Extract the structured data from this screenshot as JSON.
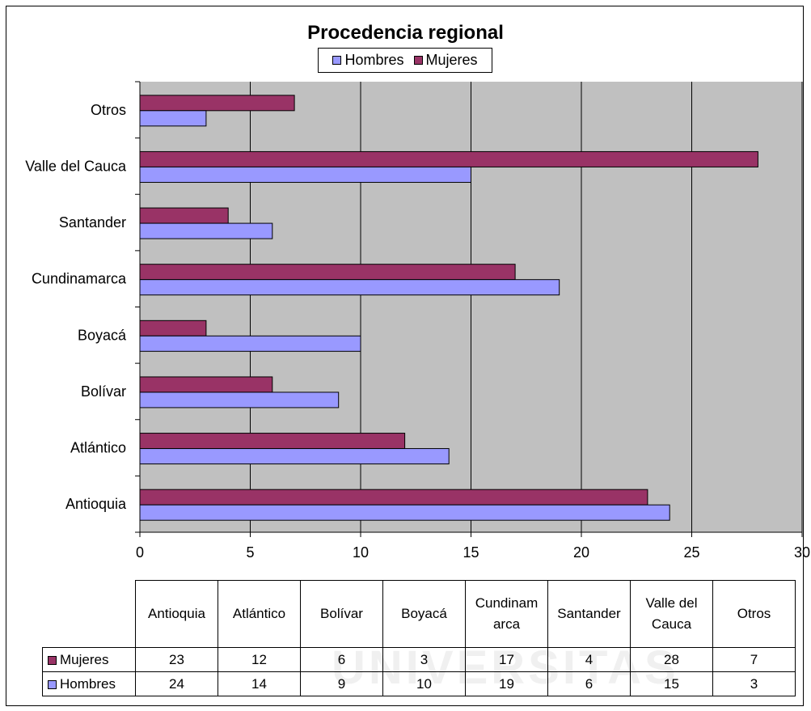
{
  "chart_data": {
    "type": "bar",
    "orientation": "horizontal",
    "title": "Procedencia regional",
    "categories": [
      "Antioquia",
      "Atlántico",
      "Bolívar",
      "Boyacá",
      "Cundinamarca",
      "Santander",
      "Valle del Cauca",
      "Otros"
    ],
    "series": [
      {
        "name": "Hombres",
        "color": "#9999ff",
        "values": [
          24,
          14,
          9,
          10,
          19,
          6,
          15,
          3
        ]
      },
      {
        "name": "Mujeres",
        "color": "#993366",
        "values": [
          23,
          12,
          6,
          3,
          17,
          4,
          28,
          7
        ]
      }
    ],
    "xlim": [
      0,
      30
    ],
    "xticks": [
      "0",
      "5",
      "10",
      "15",
      "20",
      "25",
      "30"
    ],
    "grid": true,
    "plot_background": "#c0c0c0",
    "legend_position": "top-center"
  },
  "table": {
    "headers": [
      "Antioquia",
      "Atlántico",
      "Bolívar",
      "Boyacá",
      "Cundinam arca",
      "Santander",
      "Valle del Cauca",
      "Otros"
    ],
    "rows": [
      {
        "label": "Mujeres",
        "color": "#993366",
        "values": [
          "23",
          "12",
          "6",
          "3",
          "17",
          "4",
          "28",
          "7"
        ]
      },
      {
        "label": "Hombres",
        "color": "#9999ff",
        "values": [
          "24",
          "14",
          "9",
          "10",
          "19",
          "6",
          "15",
          "3"
        ]
      }
    ]
  },
  "watermark": "UNIVERSITAS"
}
